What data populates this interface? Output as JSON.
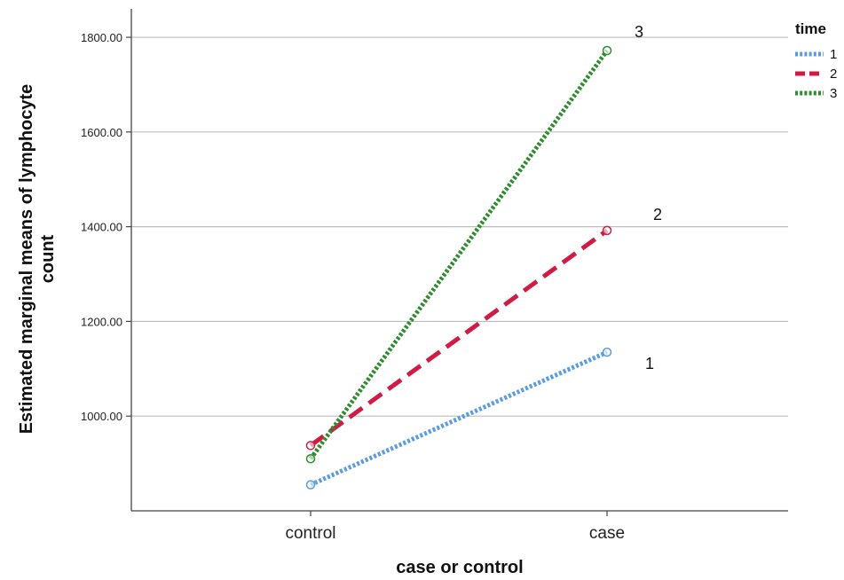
{
  "chart_data": {
    "type": "line",
    "xlabel": "case or control",
    "ylabel_lines": [
      "Estimated marginal means of lymphocyte",
      "count"
    ],
    "categories": [
      "control",
      "case"
    ],
    "y_ticks": [
      "1000.00",
      "1200.00",
      "1400.00",
      "1600.00",
      "1800.00"
    ],
    "ylim": [
      800,
      1860
    ],
    "grid": true,
    "legend": {
      "title": "time",
      "position": "top-right"
    },
    "series": [
      {
        "name": "1",
        "values": [
          855,
          1135
        ],
        "color": "#5b9bdf",
        "style": "dotted"
      },
      {
        "name": "2",
        "values": [
          938,
          1392
        ],
        "color": "#d01c44",
        "style": "dashed"
      },
      {
        "name": "3",
        "values": [
          910,
          1772
        ],
        "color": "#2e8b2e",
        "style": "dotted"
      }
    ],
    "annotations": [
      "3",
      "2",
      "1"
    ]
  }
}
